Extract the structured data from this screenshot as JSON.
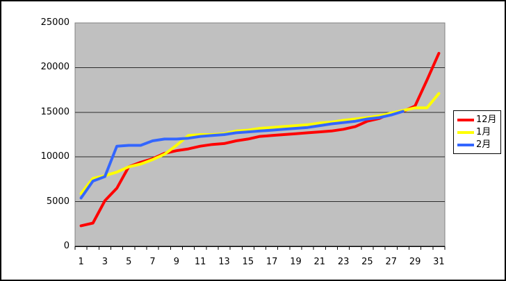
{
  "chart_data": {
    "type": "line",
    "title": "",
    "xlabel": "",
    "ylabel": "",
    "plot_bg": "#C0C0C0",
    "grid": "horizontal",
    "gridline_step": 5000,
    "legend_position": "right",
    "ylim": [
      0,
      25000
    ],
    "y_tick_labels": [
      "0",
      "5000",
      "10000",
      "15000",
      "20000",
      "25000"
    ],
    "x_tick_labels": [
      "1",
      "3",
      "5",
      "7",
      "9",
      "11",
      "13",
      "15",
      "17",
      "19",
      "21",
      "23",
      "25",
      "27",
      "29",
      "31"
    ],
    "x_range_days": 31,
    "series": [
      {
        "name": "12月",
        "color": "#FF0000",
        "values": [
          2300,
          2600,
          5100,
          6500,
          8900,
          9400,
          9800,
          10400,
          10700,
          10900,
          11200,
          11400,
          11500,
          11800,
          12000,
          12300,
          12400,
          12500,
          12600,
          12700,
          12800,
          12900,
          13100,
          13400,
          14000,
          14300,
          14900,
          15100,
          15700,
          18600,
          21600
        ]
      },
      {
        "name": "1月",
        "color": "#FFFF00",
        "values": [
          5900,
          7600,
          7900,
          8300,
          8900,
          9200,
          9700,
          10300,
          11300,
          12400,
          12500,
          12500,
          12600,
          12900,
          13000,
          13200,
          13300,
          13400,
          13500,
          13600,
          13800,
          13900,
          14100,
          14250,
          14400,
          14600,
          14900,
          15200,
          15500,
          15500,
          17100
        ]
      },
      {
        "name": "2月",
        "color": "#3366FF",
        "values": [
          5400,
          7300,
          7800,
          11200,
          11300,
          11300,
          11800,
          12000,
          12000,
          12100,
          12300,
          12400,
          12500,
          12700,
          12800,
          12900,
          13000,
          13100,
          13200,
          13300,
          13500,
          13700,
          13850,
          14000,
          14250,
          14400,
          14700,
          15100
        ]
      }
    ]
  }
}
